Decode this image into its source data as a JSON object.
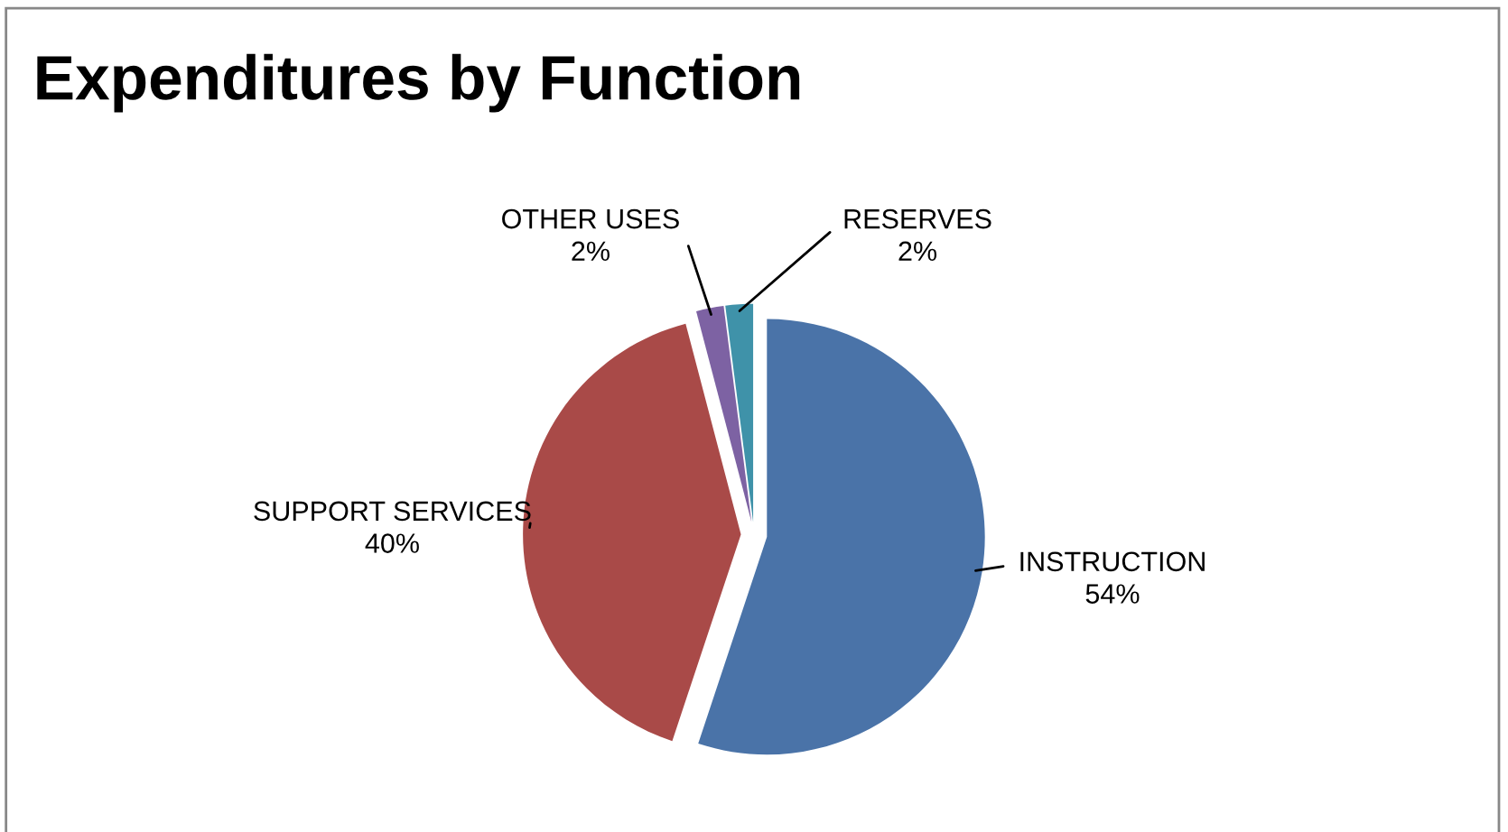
{
  "chart_data": {
    "type": "pie",
    "title": "Expenditures by Function",
    "categories": [
      "INSTRUCTION",
      "SUPPORT SERVICES",
      "OTHER USES",
      "RESERVES"
    ],
    "values": [
      54,
      40,
      2,
      2
    ],
    "colors": [
      "#4a73a8",
      "#a94a48",
      "#7d62a3",
      "#3f92a9"
    ],
    "value_labels": [
      "54%",
      "40%",
      "2%",
      "2%"
    ],
    "legend": false
  }
}
